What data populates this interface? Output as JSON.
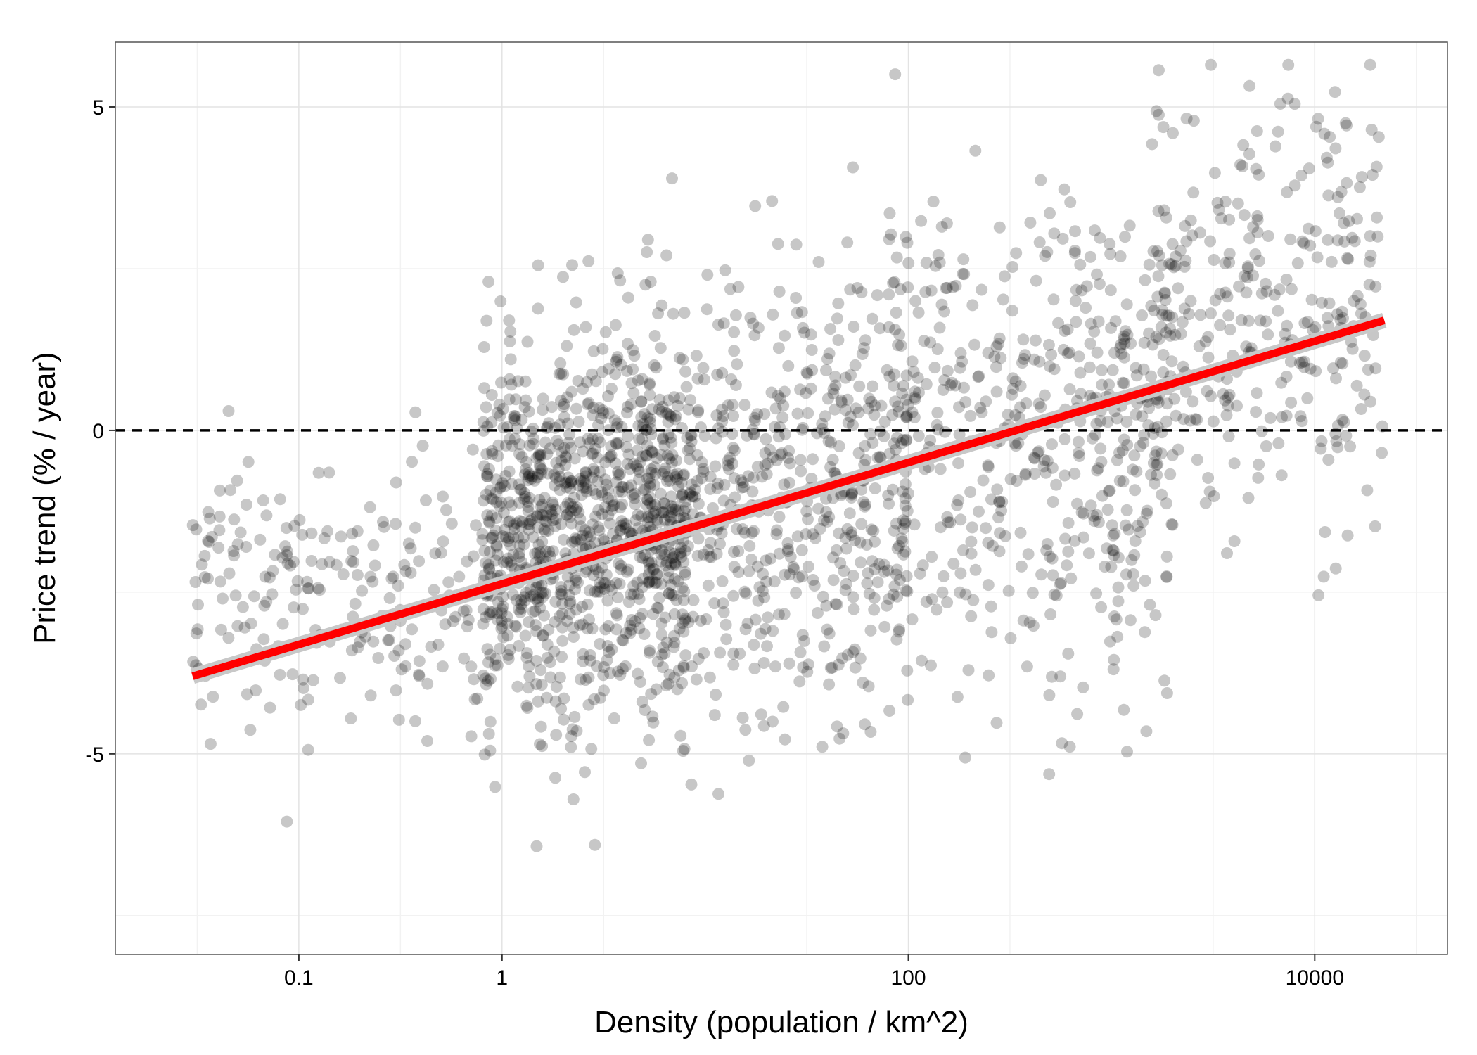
{
  "chart_data": {
    "type": "scatter",
    "title": "",
    "xlabel": "Density (population / km^2)",
    "ylabel": "Price trend (% / year)",
    "x_scale": "log10",
    "xlim": [
      0.0125,
      45000
    ],
    "ylim": [
      -8.1,
      6.0
    ],
    "x_ticks": [
      0.1,
      1,
      100,
      10000
    ],
    "x_tick_labels": [
      "0.1",
      "1",
      "100",
      "10000"
    ],
    "y_ticks": [
      -5,
      0,
      5
    ],
    "y_tick_labels": [
      "-5",
      "0",
      "5"
    ],
    "grid": true,
    "reference_line": {
      "y": 0,
      "style": "dashed",
      "color": "#000000"
    },
    "fit_line": {
      "method": "linear (log10 x)",
      "x": [
        0.03,
        22000
      ],
      "y": [
        -3.8,
        1.7
      ],
      "color": "#ff0000",
      "band_color": "#c8c8c8"
    },
    "points_style": {
      "color": "#000000",
      "opacity": 0.22
    },
    "point_groups": [
      {
        "x_range": [
          0.03,
          0.9
        ],
        "y_center": -2.5,
        "y_sd": 1.1,
        "count": 220
      },
      {
        "x_range": [
          0.8,
          8
        ],
        "y_center": -1.5,
        "y_sd": 1.5,
        "count": 900
      },
      {
        "x_range": [
          5,
          100
        ],
        "y_center": -0.9,
        "y_sd": 1.7,
        "count": 600
      },
      {
        "x_range": [
          80,
          2000
        ],
        "y_center": 0.0,
        "y_sd": 1.8,
        "count": 500
      },
      {
        "x_range": [
          1500,
          22000
        ],
        "y_center": 1.8,
        "y_sd": 1.6,
        "count": 300
      }
    ]
  }
}
